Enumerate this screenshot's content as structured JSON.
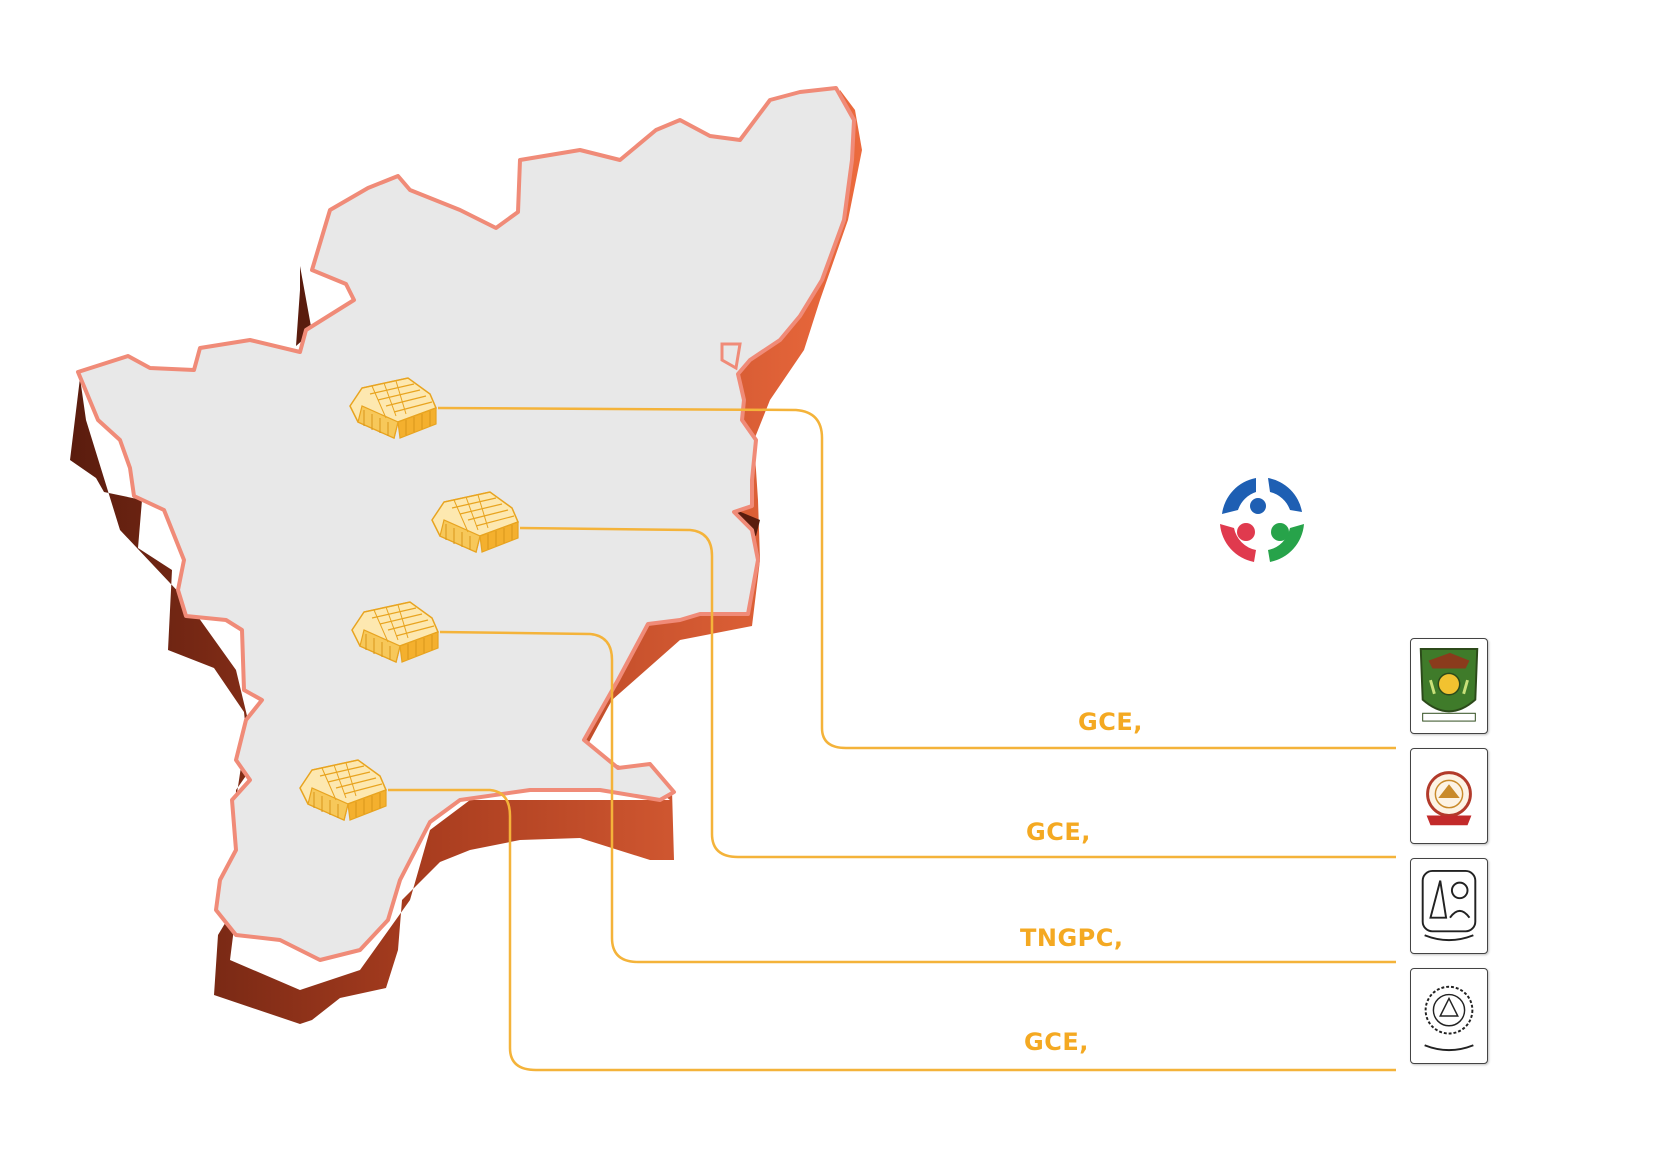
{
  "labels": [
    "GCE,",
    "GCE,",
    "TNGPC,",
    "GCE,"
  ],
  "icons": {
    "building": "building-icon",
    "fablab": "fablab-logo-icon",
    "college_1": "college-crest-icon",
    "college_2": "college-seal-icon",
    "college_3": "polytechnic-emblem-icon",
    "college_4": "college-emblem-icon"
  },
  "colors": {
    "connector": "#f4b33a",
    "label": "#f4a922",
    "map_face": "#e8e8e8",
    "map_outline": "#f08b78",
    "map_side_light": "#e8643a",
    "map_side_dark": "#5a1c0e",
    "building": "#f6c24a"
  }
}
